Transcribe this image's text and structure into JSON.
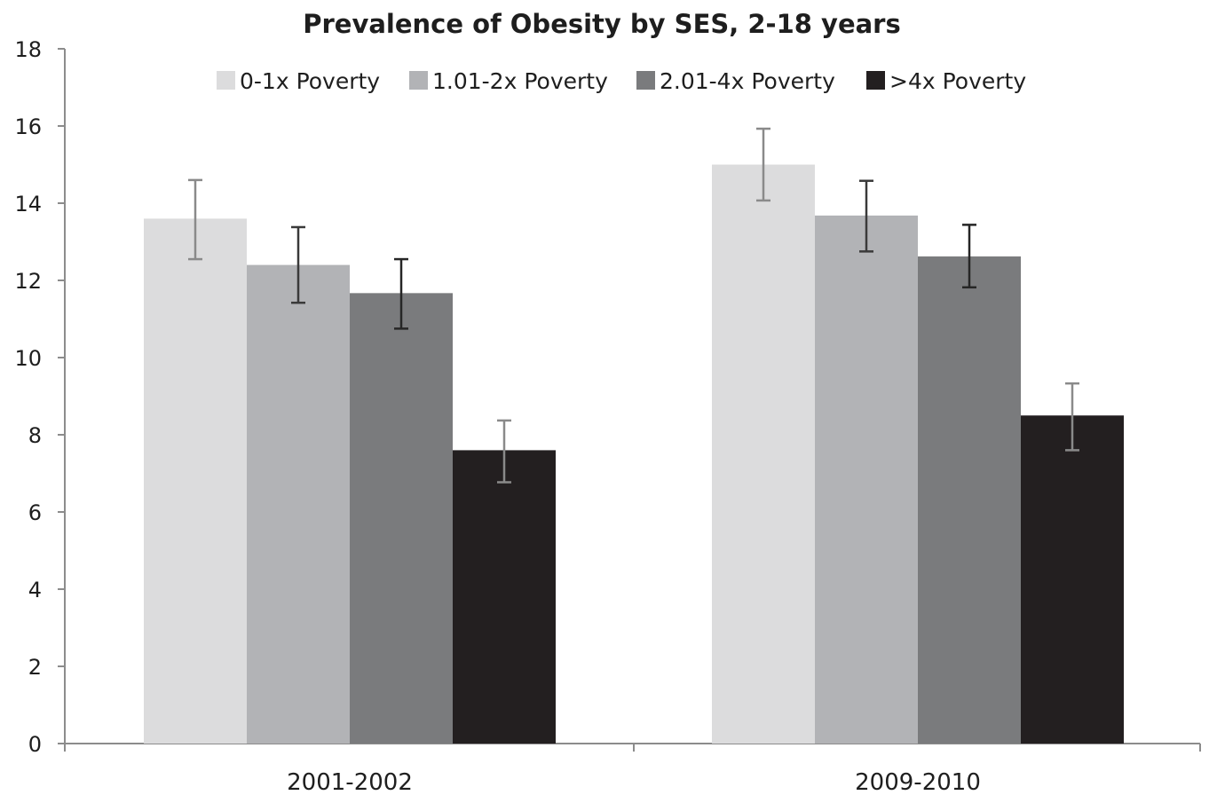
{
  "chart_data": {
    "type": "bar",
    "title": "Prevalence of Obesity by SES, 2-18 years",
    "xlabel": "",
    "ylabel": "",
    "categories": [
      "2001-2002",
      "2009-2010"
    ],
    "ylim": [
      0,
      18
    ],
    "yticks": [
      0,
      2,
      4,
      6,
      8,
      10,
      12,
      14,
      16,
      18
    ],
    "grid": false,
    "legend_position": "top",
    "series": [
      {
        "name": "0-1x Poverty",
        "color": "#dcdcdd",
        "values": [
          13.6,
          15.0
        ],
        "error_low": [
          12.55,
          14.07
        ],
        "error_high": [
          14.6,
          15.93
        ],
        "error_color": "#8a8a8a"
      },
      {
        "name": "1.01-2x Poverty",
        "color": "#b2b3b6",
        "values": [
          12.4,
          13.68
        ],
        "error_low": [
          11.42,
          12.75
        ],
        "error_high": [
          13.38,
          14.58
        ],
        "error_color": "#3a3a3a"
      },
      {
        "name": "2.01-4x Poverty",
        "color": "#7a7b7d",
        "values": [
          11.67,
          12.62
        ],
        "error_low": [
          10.75,
          11.82
        ],
        "error_high": [
          12.55,
          13.44
        ],
        "error_color": "#262626"
      },
      {
        "name": ">4x Poverty",
        "color": "#231f20",
        "values": [
          7.6,
          8.5
        ],
        "error_low": [
          6.77,
          7.6
        ],
        "error_high": [
          8.37,
          9.33
        ],
        "error_color": "#8a8a8a"
      }
    ]
  }
}
